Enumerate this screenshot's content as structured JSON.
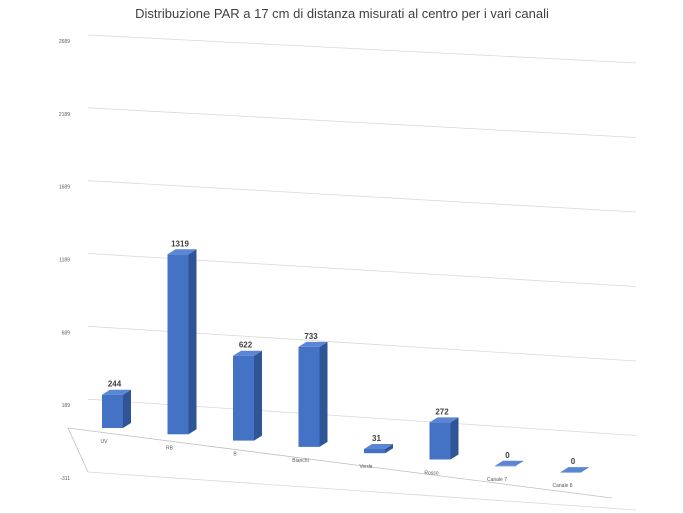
{
  "chart_data": {
    "type": "bar",
    "title": "Distribuzione PAR a 17 cm di distanza misurati al centro per i vari canali",
    "categories": [
      "UV",
      "RB",
      "B",
      "Bianchi",
      "Verde",
      "Rosso",
      "Canale 7",
      "Canale 8"
    ],
    "series": [
      {
        "values": [
          244,
          1319,
          622,
          733,
          31,
          272,
          0,
          0
        ]
      }
    ],
    "data_labels": [
      "244",
      "1319",
      "622",
      "733",
      "31",
      "272",
      "0",
      "0"
    ],
    "y_ticks": [
      -311,
      189,
      689,
      1189,
      1689,
      2189,
      2689
    ],
    "y_tick_labels": [
      "-311",
      "189",
      "689",
      "1189",
      "1689",
      "2189",
      "2689"
    ],
    "ylim": [
      -311,
      2689
    ],
    "grid": true,
    "legend": "none",
    "projection": "3d-perspective",
    "colors": {
      "bar_front": "#4472C4",
      "bar_side": "#2F5597",
      "bar_top": "#5B86D6",
      "gridline": "#d9d9d9",
      "axis_line": "#bfbfbf"
    }
  }
}
